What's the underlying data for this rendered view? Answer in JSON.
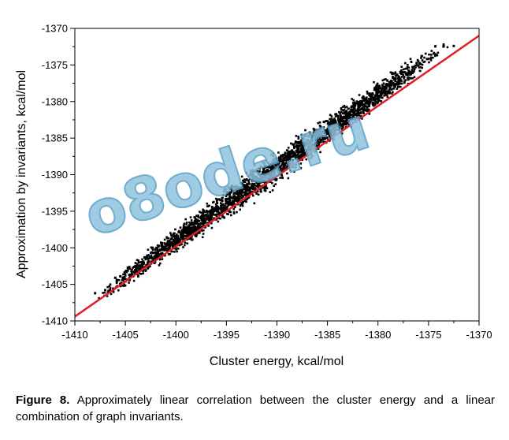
{
  "chart_data": {
    "type": "scatter",
    "title": "",
    "xlabel": "Cluster energy, kcal/mol",
    "ylabel": "Approximation by invariants, kcal/mol",
    "xlim": [
      -1410,
      -1370
    ],
    "ylim": [
      -1410,
      -1370
    ],
    "x_ticks": [
      -1410,
      -1405,
      -1400,
      -1395,
      -1390,
      -1385,
      -1380,
      -1375,
      -1370
    ],
    "y_ticks": [
      -1410,
      -1405,
      -1400,
      -1395,
      -1390,
      -1385,
      -1380,
      -1375,
      -1370
    ],
    "grid": false,
    "series": [
      {
        "name": "",
        "color": "#000000",
        "cloud_summary": {
          "x_range": [
            -1408,
            -1373
          ],
          "relation": "y ≈ x + 1",
          "spread": 1.5
        },
        "points": [
          [
            -1408,
            -1406.2
          ],
          [
            -1407,
            -1405.8
          ],
          [
            -1406,
            -1404.1
          ],
          [
            -1405.5,
            -1403.9
          ],
          [
            -1404,
            -1402.5
          ],
          [
            -1403,
            -1401.4
          ],
          [
            -1402,
            -1400.3
          ],
          [
            -1401,
            -1399.5
          ],
          [
            -1400,
            -1398.6
          ],
          [
            -1399,
            -1397.7
          ],
          [
            -1398,
            -1396.4
          ],
          [
            -1397,
            -1395.6
          ],
          [
            -1396,
            -1394.5
          ],
          [
            -1395,
            -1393.7
          ],
          [
            -1394,
            -1392.6
          ],
          [
            -1393,
            -1391.7
          ],
          [
            -1392,
            -1390.6
          ],
          [
            -1391,
            -1389.7
          ],
          [
            -1390,
            -1388.8
          ],
          [
            -1389,
            -1387.9
          ],
          [
            -1388,
            -1386.9
          ],
          [
            -1387,
            -1386.0
          ],
          [
            -1386,
            -1385.1
          ],
          [
            -1385,
            -1384.2
          ],
          [
            -1384,
            -1383.2
          ],
          [
            -1383,
            -1382.2
          ],
          [
            -1382,
            -1381.2
          ],
          [
            -1381,
            -1380.2
          ],
          [
            -1380,
            -1379.3
          ],
          [
            -1379,
            -1378.6
          ],
          [
            -1378,
            -1378.0
          ],
          [
            -1377,
            -1377.6
          ],
          [
            -1376,
            -1375.1
          ],
          [
            -1373.5,
            -1372.4
          ],
          [
            -1372.5,
            -1372.4
          ]
        ]
      },
      {
        "name": "",
        "type": "line",
        "color": "#e02020",
        "x": [
          -1410,
          -1370
        ],
        "y": [
          -1409.4,
          -1371.0
        ]
      }
    ]
  },
  "watermark": "o8ode.ru",
  "caption": {
    "label": "Figure 8.",
    "text": " Approximately linear correlation between the cluster energy and a linear combination of graph invariants."
  }
}
